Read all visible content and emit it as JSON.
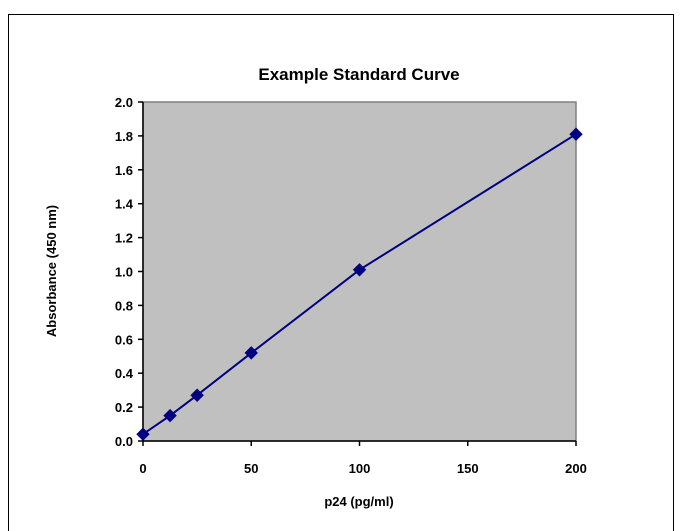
{
  "chart_data": {
    "type": "line",
    "title": "Example Standard Curve",
    "xlabel": "p24 (pg/ml)",
    "ylabel": "Absorbance (450 nm)",
    "xlim": [
      0,
      200
    ],
    "ylim": [
      0,
      2.0
    ],
    "xticks": [
      0,
      50,
      100,
      150,
      200
    ],
    "yticks": [
      0.0,
      0.2,
      0.4,
      0.6,
      0.8,
      1.0,
      1.2,
      1.4,
      1.6,
      1.8,
      2.0
    ],
    "xtick_labels": [
      "0",
      "50",
      "100",
      "150",
      "200"
    ],
    "ytick_labels": [
      "0.0",
      "0.2",
      "0.4",
      "0.6",
      "0.8",
      "1.0",
      "1.2",
      "1.4",
      "1.6",
      "1.8",
      "2.0"
    ],
    "grid": false,
    "series": [
      {
        "x": [
          0,
          12.5,
          25,
          50,
          100,
          200
        ],
        "y": [
          0.04,
          0.15,
          0.27,
          0.52,
          1.01,
          1.81
        ]
      }
    ],
    "colors": {
      "plot_background": "#c0c0c0",
      "series_line": "#000080",
      "marker": "#000080"
    },
    "marker_shape": "diamond-icon"
  }
}
